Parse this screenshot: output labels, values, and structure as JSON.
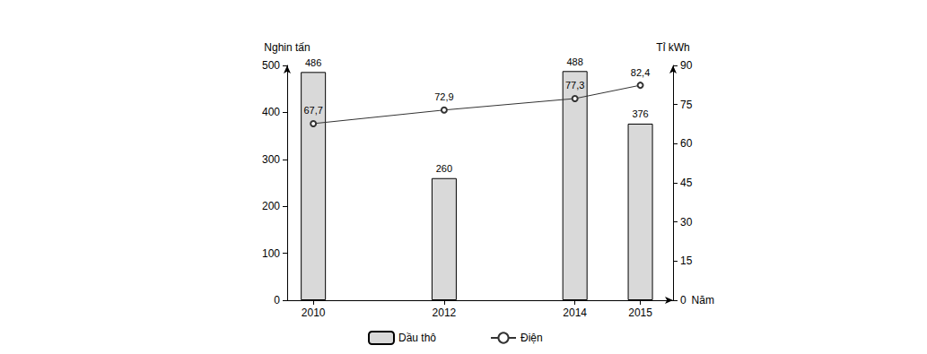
{
  "chart_data": {
    "type": "bar",
    "x": [
      2010,
      2012,
      2014,
      2015
    ],
    "xlim": [
      2009.6,
      2015.5
    ],
    "xticks": [
      2010,
      2012,
      2014,
      2015
    ],
    "x_label": "Năm",
    "y_label": "Nghin tấn",
    "y2_label": "Tỉ kWh",
    "ylim": [
      0,
      500
    ],
    "yticks": [
      0,
      100,
      200,
      300,
      400,
      500
    ],
    "y2lim": [
      0,
      90
    ],
    "y2ticks": [
      0,
      15,
      30,
      45,
      60,
      75,
      90
    ],
    "grid": false,
    "legend": "bottom",
    "data_labels": true,
    "series": [
      {
        "name": "Dầu thô",
        "type": "bar",
        "axis": "y",
        "color": "#d9d9d9",
        "values": [
          486,
          260,
          488,
          376
        ]
      },
      {
        "name": "Điện",
        "type": "line",
        "axis": "y2",
        "color": "#333333",
        "marker": "circle",
        "line_style": "solid",
        "values": [
          67.7,
          72.9,
          77.3,
          82.4
        ],
        "value_labels": [
          "67,7",
          "72,9",
          "77,3",
          "82,4"
        ]
      }
    ]
  }
}
